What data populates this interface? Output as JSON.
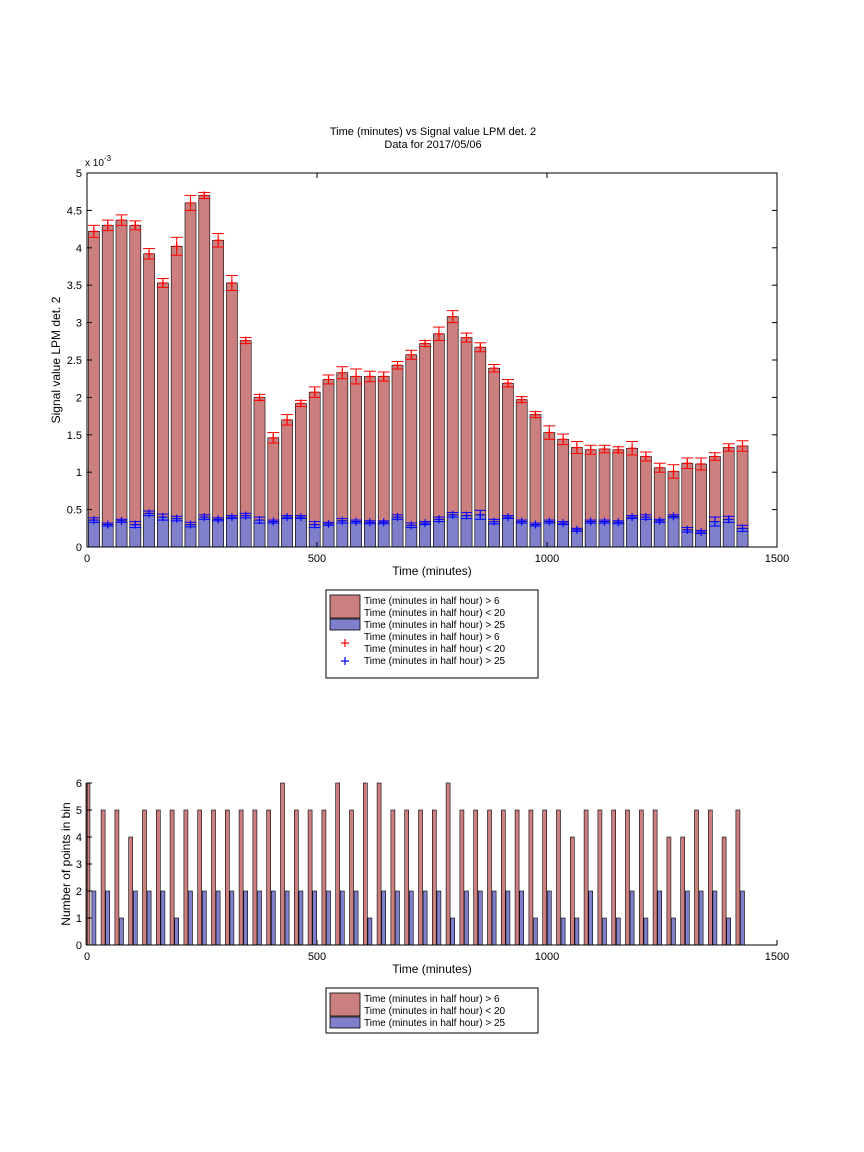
{
  "chart_data": [
    {
      "type": "bar",
      "title": "Time (minutes) vs Signal value LPM det. 2",
      "subtitle": "Data for 2017/05/06",
      "xlabel": "Time (minutes)",
      "ylabel": "Signal value LPM det. 2",
      "y_exponent_label": "x 10",
      "y_exponent_power": "-3",
      "xlim": [
        0,
        1500
      ],
      "ylim": [
        0,
        5
      ],
      "y_scale": 0.001,
      "xticks": [
        0,
        500,
        1000,
        1500
      ],
      "yticks": [
        0,
        0.5,
        1,
        1.5,
        2,
        2.5,
        3,
        3.5,
        4,
        4.5,
        5
      ],
      "ytick_labels": [
        "0",
        "0.5",
        "1",
        "1.5",
        "2",
        "2.5",
        "3",
        "3.5",
        "4",
        "4.5",
        "5"
      ],
      "grid": false,
      "legend_position": "below",
      "x": [
        15,
        45,
        75,
        105,
        135,
        165,
        195,
        225,
        255,
        285,
        315,
        345,
        375,
        405,
        435,
        465,
        495,
        525,
        555,
        585,
        615,
        645,
        675,
        705,
        735,
        765,
        795,
        825,
        855,
        885,
        915,
        945,
        975,
        1005,
        1035,
        1065,
        1095,
        1125,
        1155,
        1185,
        1215,
        1245,
        1275,
        1305,
        1335,
        1365,
        1395,
        1425
      ],
      "series": [
        {
          "name": "Time (minutes in half hour) > 6\nTime (minutes in half hour) < 20",
          "kind": "bar",
          "color": "#cc7f7f",
          "values": [
            4.22,
            4.3,
            4.37,
            4.3,
            3.92,
            3.53,
            4.02,
            4.6,
            4.7,
            4.1,
            3.53,
            2.76,
            2.0,
            1.46,
            1.7,
            1.92,
            2.07,
            2.24,
            2.33,
            2.28,
            2.28,
            2.28,
            2.43,
            2.57,
            2.72,
            2.85,
            3.08,
            2.8,
            2.67,
            2.39,
            2.19,
            1.97,
            1.77,
            1.53,
            1.44,
            1.33,
            1.3,
            1.31,
            1.3,
            1.32,
            1.21,
            1.06,
            1.01,
            1.12,
            1.11,
            1.21,
            1.33,
            1.35
          ],
          "errors": [
            0.08,
            0.07,
            0.07,
            0.06,
            0.07,
            0.06,
            0.12,
            0.1,
            0.04,
            0.09,
            0.1,
            0.04,
            0.04,
            0.07,
            0.07,
            0.04,
            0.07,
            0.06,
            0.08,
            0.1,
            0.07,
            0.06,
            0.05,
            0.06,
            0.04,
            0.09,
            0.08,
            0.06,
            0.06,
            0.05,
            0.05,
            0.04,
            0.04,
            0.09,
            0.07,
            0.08,
            0.06,
            0.05,
            0.04,
            0.09,
            0.06,
            0.06,
            0.09,
            0.07,
            0.08,
            0.05,
            0.05,
            0.07
          ]
        },
        {
          "name": "Time (minutes in half hour) > 25",
          "kind": "bar",
          "color": "#7f7fcc",
          "values": [
            0.36,
            0.3,
            0.35,
            0.3,
            0.45,
            0.4,
            0.38,
            0.3,
            0.4,
            0.37,
            0.4,
            0.42,
            0.36,
            0.34,
            0.4,
            0.4,
            0.3,
            0.31,
            0.35,
            0.34,
            0.33,
            0.33,
            0.4,
            0.29,
            0.32,
            0.37,
            0.43,
            0.42,
            0.43,
            0.34,
            0.4,
            0.34,
            0.3,
            0.34,
            0.32,
            0.23,
            0.34,
            0.34,
            0.33,
            0.4,
            0.4,
            0.35,
            0.41,
            0.23,
            0.2,
            0.34,
            0.37,
            0.25
          ],
          "errors": [
            0.03,
            0.02,
            0.02,
            0.04,
            0.03,
            0.04,
            0.03,
            0.03,
            0.03,
            0.02,
            0.02,
            0.03,
            0.04,
            0.02,
            0.02,
            0.02,
            0.04,
            0.02,
            0.03,
            0.02,
            0.02,
            0.02,
            0.03,
            0.03,
            0.02,
            0.03,
            0.03,
            0.04,
            0.06,
            0.03,
            0.02,
            0.02,
            0.02,
            0.02,
            0.02,
            0.02,
            0.02,
            0.02,
            0.02,
            0.02,
            0.03,
            0.02,
            0.02,
            0.03,
            0.02,
            0.06,
            0.04,
            0.04
          ]
        }
      ],
      "legend": [
        {
          "marker": "patch",
          "color": "#cc7f7f",
          "lines": [
            "Time (minutes in half hour) > 6",
            "Time (minutes in half hour) < 20"
          ]
        },
        {
          "marker": "patch",
          "color": "#7f7fcc",
          "lines": [
            "Time (minutes in half hour) > 25"
          ]
        },
        {
          "marker": "+",
          "color": "#ff0000",
          "lines": [
            "Time (minutes in half hour) > 6",
            "Time (minutes in half hour) < 20"
          ]
        },
        {
          "marker": "+",
          "color": "#0000ff",
          "lines": [
            "Time (minutes in half hour) > 25"
          ]
        }
      ]
    },
    {
      "type": "bar",
      "title": "",
      "xlabel": "Time (minutes)",
      "ylabel": "Number of points in bin",
      "xlim": [
        0,
        1500
      ],
      "ylim": [
        0,
        6
      ],
      "xticks": [
        0,
        500,
        1000,
        1500
      ],
      "yticks": [
        0,
        1,
        2,
        3,
        4,
        5,
        6
      ],
      "ytick_labels": [
        "0",
        "1",
        "2",
        "3",
        "4",
        "5",
        "6"
      ],
      "grid": false,
      "legend_position": "below",
      "series": [
        {
          "name": "Time (minutes in half hour) > 6\nTime (minutes in half hour) < 20",
          "color": "#cc7f7f",
          "x": [
            2,
            35,
            65,
            95,
            125,
            155,
            185,
            215,
            245,
            275,
            305,
            335,
            365,
            395,
            425,
            455,
            485,
            515,
            545,
            575,
            605,
            635,
            665,
            695,
            725,
            755,
            785,
            815,
            845,
            875,
            905,
            935,
            965,
            995,
            1025,
            1055,
            1085,
            1115,
            1145,
            1175,
            1205,
            1235,
            1265,
            1295,
            1325,
            1355,
            1385,
            1415
          ],
          "values": [
            6,
            5,
            5,
            4,
            5,
            5,
            5,
            5,
            5,
            5,
            5,
            5,
            5,
            5,
            6,
            5,
            5,
            5,
            6,
            5,
            6,
            6,
            5,
            5,
            5,
            5,
            6,
            5,
            5,
            5,
            5,
            5,
            5,
            5,
            5,
            4,
            5,
            5,
            5,
            5,
            5,
            5,
            4,
            4,
            5,
            5,
            4,
            5
          ]
        },
        {
          "name": "Time (minutes in half hour) > 25",
          "color": "#7f7fcc",
          "x": [
            15,
            45,
            75,
            105,
            135,
            165,
            195,
            225,
            255,
            285,
            315,
            345,
            375,
            405,
            435,
            465,
            495,
            525,
            555,
            585,
            615,
            645,
            675,
            705,
            735,
            765,
            795,
            825,
            855,
            885,
            915,
            945,
            975,
            1005,
            1035,
            1065,
            1095,
            1125,
            1155,
            1185,
            1215,
            1245,
            1275,
            1305,
            1335,
            1365,
            1395,
            1425
          ],
          "values": [
            2,
            2,
            1,
            2,
            2,
            2,
            1,
            2,
            2,
            2,
            2,
            2,
            2,
            2,
            2,
            2,
            2,
            2,
            2,
            2,
            1,
            2,
            2,
            2,
            2,
            2,
            1,
            2,
            2,
            2,
            2,
            2,
            1,
            2,
            1,
            1,
            2,
            1,
            1,
            2,
            1,
            2,
            1,
            2,
            2,
            2,
            1,
            2
          ]
        }
      ],
      "legend": [
        {
          "marker": "patch",
          "color": "#cc7f7f",
          "lines": [
            "Time (minutes in half hour) > 6",
            "Time (minutes in half hour) < 20"
          ]
        },
        {
          "marker": "patch",
          "color": "#7f7fcc",
          "lines": [
            "Time (minutes in half hour) > 25"
          ]
        }
      ]
    }
  ]
}
